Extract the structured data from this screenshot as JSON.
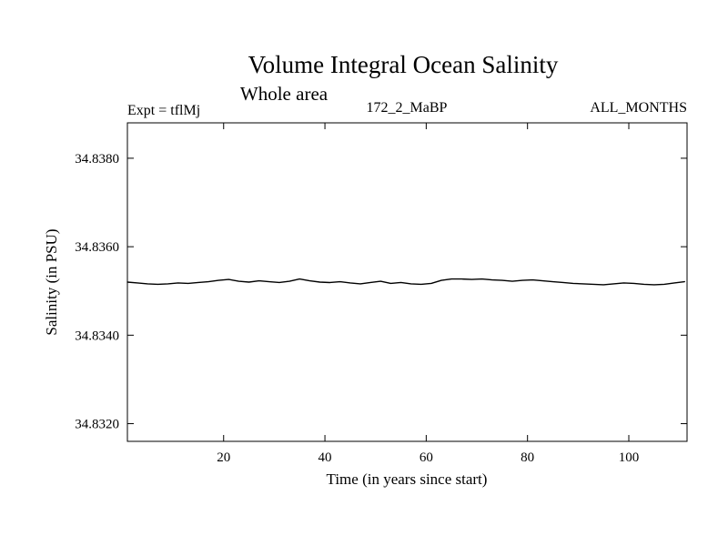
{
  "chart_data": {
    "type": "line",
    "title": "Volume Integral Ocean Salinity",
    "subtitle": "Whole area",
    "annotation_left": "Expt = tflMj",
    "annotation_center": "172_2_MaBP",
    "annotation_right": "ALL_MONTHS",
    "xlabel": "Time (in years since start)",
    "ylabel": "Salinity (in PSU)",
    "xlim": [
      1,
      111.5
    ],
    "ylim": [
      34.8316,
      34.8388
    ],
    "xticks": [
      20,
      40,
      60,
      80,
      100
    ],
    "xtick_labels": [
      "20",
      "40",
      "60",
      "80",
      "100"
    ],
    "yticks": [
      34.832,
      34.834,
      34.836,
      34.838
    ],
    "ytick_labels": [
      "34.8320",
      "34.8340",
      "34.8360",
      "34.8380"
    ],
    "grid": false,
    "legend": null,
    "line_color": "#000000",
    "background_color": "#ffffff",
    "series": [
      {
        "name": "volume-integral-ocean-salinity",
        "x": [
          1,
          3,
          5,
          7,
          9,
          11,
          13,
          15,
          17,
          19,
          21,
          23,
          25,
          27,
          29,
          31,
          33,
          35,
          37,
          39,
          41,
          43,
          45,
          47,
          49,
          51,
          53,
          55,
          57,
          59,
          61,
          63,
          65,
          67,
          69,
          71,
          73,
          75,
          77,
          79,
          81,
          83,
          85,
          87,
          89,
          91,
          93,
          95,
          97,
          99,
          101,
          103,
          105,
          107,
          109,
          111
        ],
        "y": [
          34.8352,
          34.83518,
          34.83516,
          34.83515,
          34.83516,
          34.83518,
          34.83517,
          34.83519,
          34.83521,
          34.83524,
          34.83526,
          34.83522,
          34.8352,
          34.83523,
          34.83521,
          34.83519,
          34.83522,
          34.83527,
          34.83523,
          34.8352,
          34.83519,
          34.83521,
          34.83518,
          34.83516,
          34.83519,
          34.83522,
          34.83517,
          34.83519,
          34.83516,
          34.83515,
          34.83517,
          34.83524,
          34.83527,
          34.83527,
          34.83526,
          34.83527,
          34.83525,
          34.83524,
          34.83522,
          34.83524,
          34.83525,
          34.83523,
          34.83521,
          34.83519,
          34.83517,
          34.83516,
          34.83515,
          34.83514,
          34.83516,
          34.83518,
          34.83517,
          34.83515,
          34.83514,
          34.83515,
          34.83518,
          34.83521
        ]
      }
    ]
  }
}
